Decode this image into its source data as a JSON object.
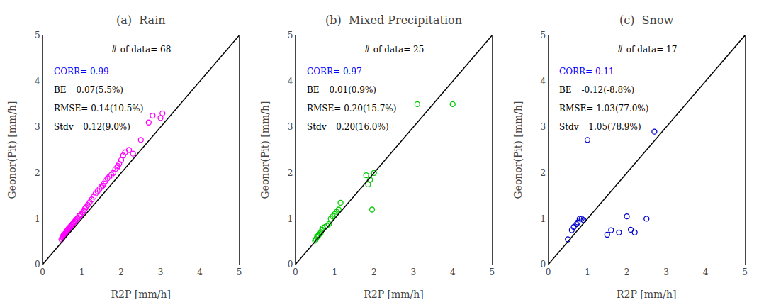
{
  "chart_data": [
    {
      "type": "scatter",
      "title": "(a)  Rain",
      "xlabel": "R2P [mm/h]",
      "ylabel": "Geonor(Pit) [mm/h]",
      "xlim": [
        0,
        5
      ],
      "ylim": [
        0,
        5
      ],
      "xticks": [
        0,
        1,
        2,
        3,
        4,
        5
      ],
      "yticks": [
        0,
        1,
        2,
        3,
        4,
        5
      ],
      "grid": false,
      "series": [
        {
          "type": "scatter",
          "marker": "open circle",
          "color": "#FF00FF",
          "x": [
            0.48,
            0.5,
            0.51,
            0.52,
            0.53,
            0.54,
            0.55,
            0.55,
            0.56,
            0.57,
            0.58,
            0.59,
            0.6,
            0.61,
            0.62,
            0.63,
            0.64,
            0.65,
            0.66,
            0.67,
            0.68,
            0.7,
            0.72,
            0.74,
            0.76,
            0.78,
            0.8,
            0.82,
            0.84,
            0.86,
            0.88,
            0.9,
            0.93,
            0.96,
            0.99,
            1.02,
            1.05,
            1.08,
            1.11,
            1.15,
            1.2,
            1.25,
            1.3,
            1.35,
            1.4,
            1.45,
            1.5,
            1.53,
            1.56,
            1.6,
            1.65,
            1.7,
            1.75,
            1.8,
            1.85,
            1.9,
            1.92,
            1.95,
            2.0,
            2.05,
            2.1,
            2.2,
            2.3,
            2.5,
            2.7,
            2.8,
            3.0,
            3.05
          ],
          "values": [
            0.55,
            0.58,
            0.6,
            0.62,
            0.63,
            0.64,
            0.65,
            0.66,
            0.65,
            0.67,
            0.68,
            0.68,
            0.7,
            0.72,
            0.73,
            0.74,
            0.76,
            0.76,
            0.78,
            0.79,
            0.8,
            0.82,
            0.84,
            0.86,
            0.88,
            0.9,
            0.92,
            0.94,
            0.96,
            0.98,
            1.0,
            1.02,
            1.06,
            1.08,
            1.1,
            1.14,
            1.18,
            1.22,
            1.25,
            1.3,
            1.36,
            1.42,
            1.48,
            1.55,
            1.6,
            1.65,
            1.7,
            1.72,
            1.77,
            1.82,
            1.88,
            1.92,
            1.96,
            2.0,
            2.08,
            2.12,
            2.15,
            2.2,
            2.28,
            2.38,
            2.45,
            2.5,
            2.42,
            2.72,
            3.1,
            3.25,
            3.2,
            3.3
          ]
        },
        {
          "type": "line",
          "line_style": "solid",
          "color": "black",
          "x": [
            0,
            5
          ],
          "values": [
            0,
            5
          ]
        }
      ],
      "annotations": [
        {
          "text": "# of data= 68",
          "color": "black"
        },
        {
          "text": "CORR= 0.99",
          "color": "blue"
        },
        {
          "text": "BE= 0.07(5.5%)",
          "color": "black"
        },
        {
          "text": "RMSE= 0.14(10.5%)",
          "color": "black"
        },
        {
          "text": "Stdv= 0.12(9.0%)",
          "color": "black"
        }
      ]
    },
    {
      "type": "scatter",
      "title": "(b)  Mixed Precipitation",
      "xlabel": "R2P [mm/h]",
      "ylabel": "Geonor(Pit) [mm/h]",
      "xlim": [
        0,
        5
      ],
      "ylim": [
        0,
        5
      ],
      "xticks": [
        0,
        1,
        2,
        3,
        4,
        5
      ],
      "yticks": [
        0,
        1,
        2,
        3,
        4,
        5
      ],
      "grid": false,
      "series": [
        {
          "type": "scatter",
          "marker": "open circle",
          "color": "#00CC00",
          "x": [
            0.5,
            0.52,
            0.55,
            0.58,
            0.6,
            0.63,
            0.65,
            0.68,
            0.7,
            0.75,
            0.8,
            0.85,
            0.9,
            0.95,
            1.0,
            1.05,
            1.1,
            1.15,
            1.8,
            1.85,
            1.9,
            1.95,
            2.0,
            3.1,
            4.0
          ],
          "values": [
            0.52,
            0.55,
            0.6,
            0.63,
            0.65,
            0.68,
            0.7,
            0.76,
            0.8,
            0.82,
            0.85,
            0.88,
            1.0,
            1.05,
            1.1,
            1.15,
            1.2,
            1.35,
            1.95,
            1.75,
            1.85,
            1.2,
            2.0,
            3.5,
            3.5
          ]
        },
        {
          "type": "line",
          "line_style": "solid",
          "color": "black",
          "x": [
            0,
            5
          ],
          "values": [
            0,
            5
          ]
        }
      ],
      "annotations": [
        {
          "text": "# of data= 25",
          "color": "black"
        },
        {
          "text": "CORR= 0.97",
          "color": "blue"
        },
        {
          "text": "BE= 0.01(0.9%)",
          "color": "black"
        },
        {
          "text": "RMSE= 0.20(15.7%)",
          "color": "black"
        },
        {
          "text": "Stdv= 0.20(16.0%)",
          "color": "black"
        }
      ]
    },
    {
      "type": "scatter",
      "title": "(c)  Snow",
      "xlabel": "R2P [mm/h]",
      "ylabel": "Geonor(Pit) [mm/h]",
      "xlim": [
        0,
        5
      ],
      "ylim": [
        0,
        5
      ],
      "xticks": [
        0,
        1,
        2,
        3,
        4,
        5
      ],
      "yticks": [
        0,
        1,
        2,
        3,
        4,
        5
      ],
      "grid": false,
      "series": [
        {
          "type": "scatter",
          "marker": "open circle",
          "color": "#0000CC",
          "x": [
            0.5,
            0.6,
            0.65,
            0.72,
            0.75,
            0.8,
            0.85,
            0.9,
            1.0,
            1.5,
            1.6,
            1.8,
            2.0,
            2.1,
            2.2,
            2.5,
            2.7
          ],
          "values": [
            0.55,
            0.75,
            0.82,
            0.88,
            0.92,
            1.0,
            1.0,
            0.97,
            2.72,
            0.65,
            0.75,
            0.7,
            1.05,
            0.76,
            0.7,
            1.0,
            2.9
          ]
        },
        {
          "type": "line",
          "line_style": "solid",
          "color": "black",
          "x": [
            0,
            5
          ],
          "values": [
            0,
            5
          ]
        }
      ],
      "annotations": [
        {
          "text": "# of data= 17",
          "color": "black"
        },
        {
          "text": "CORR= 0.11",
          "color": "blue"
        },
        {
          "text": "BE= -0.12(-8.8%)",
          "color": "black"
        },
        {
          "text": "RMSE= 1.03(77.0%)",
          "color": "black"
        },
        {
          "text": "Stdv= 1.05(78.9%)",
          "color": "black"
        }
      ]
    }
  ]
}
